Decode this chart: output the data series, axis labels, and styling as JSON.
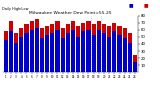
{
  "title": "Milwaukee Weather Dew Point=55.25",
  "subtitle": "Daily High/Low",
  "high_values": [
    58,
    72,
    55,
    62,
    68,
    72,
    75,
    62,
    65,
    68,
    72,
    62,
    68,
    72,
    65,
    70,
    72,
    68,
    72,
    68,
    65,
    70,
    65,
    62,
    55,
    25
  ],
  "low_values": [
    45,
    58,
    42,
    50,
    55,
    60,
    62,
    48,
    52,
    55,
    60,
    48,
    55,
    60,
    50,
    58,
    60,
    52,
    60,
    55,
    50,
    58,
    52,
    48,
    42,
    15
  ],
  "high_color": "#cc0000",
  "low_color": "#0000cc",
  "background_color": "#ffffff",
  "ylim": [
    0,
    80
  ],
  "ytick_vals": [
    10,
    20,
    30,
    40,
    50,
    60,
    70,
    80
  ],
  "n_bars": 26
}
